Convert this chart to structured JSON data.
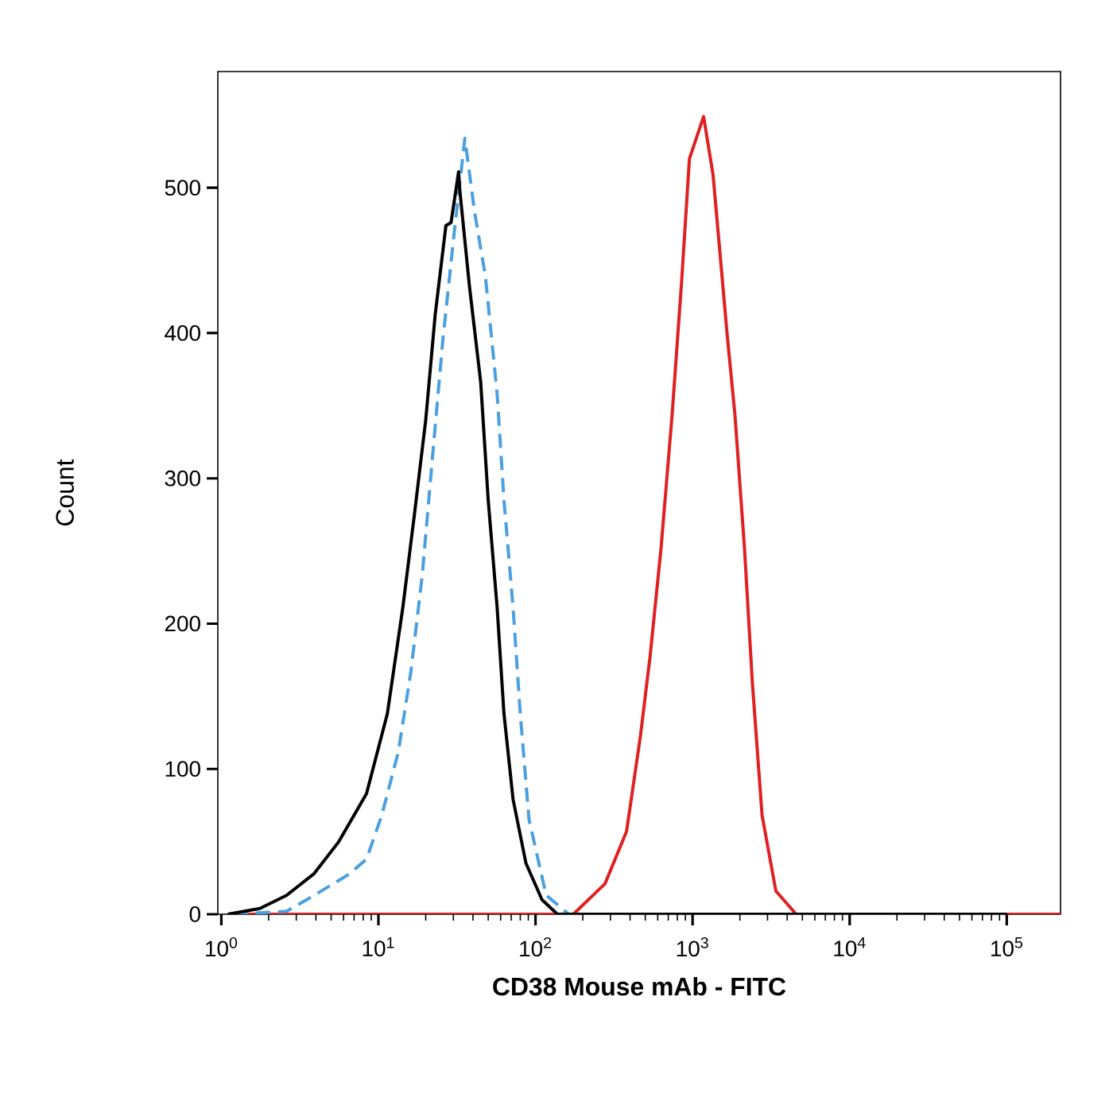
{
  "chart_data": {
    "type": "line",
    "xlabel": "CD38 Mouse mAb - FITC",
    "ylabel": "Count",
    "log": "x",
    "xlim": [
      0.95,
      220000
    ],
    "ylim": [
      0,
      580
    ],
    "xticks": [
      {
        "value": 1,
        "label": "10$^{0}$"
      },
      {
        "value": 10,
        "label": "10$^{1}$"
      },
      {
        "value": 100,
        "label": "10$^{2}$"
      },
      {
        "value": 1000,
        "label": "10$^{3}$"
      },
      {
        "value": 10000,
        "label": "10$^{4}$"
      },
      {
        "value": 100000,
        "label": "10$^{5}$"
      }
    ],
    "yticks": [
      0,
      100,
      200,
      300,
      400,
      500
    ],
    "series": [
      {
        "color": "#e02020",
        "line_style": "solid",
        "x": [
          1.1,
          174,
          277,
          380,
          466,
          537,
          630,
          741,
          851,
          955,
          1175,
          1350,
          1660,
          1860,
          2140,
          2400,
          2770,
          3390,
          4570,
          100000,
          220000
        ],
        "values": [
          0,
          0,
          21,
          57,
          123,
          178,
          252,
          344,
          435,
          520,
          549,
          509,
          399,
          344,
          252,
          160,
          68,
          16,
          0,
          0,
          0
        ]
      },
      {
        "color": "#4a9fe0",
        "line_style": "dashed",
        "x": [
          1.2,
          2.6,
          3.9,
          6.6,
          8.4,
          10.5,
          13.4,
          16.1,
          19,
          22.4,
          25.7,
          30.3,
          35.5,
          41,
          48,
          57,
          63,
          72,
          80,
          91,
          117,
          163,
          2000
        ],
        "values": [
          0,
          2,
          13,
          28,
          38,
          68,
          112,
          167,
          233,
          322,
          395,
          468,
          534,
          483,
          439,
          358,
          285,
          211,
          138,
          65,
          13,
          0,
          0
        ]
      },
      {
        "color": "#000000",
        "line_style": "solid",
        "x": [
          1.1,
          1.76,
          2.6,
          3.9,
          5.6,
          8.4,
          11.4,
          14.3,
          16.9,
          20,
          23,
          26.9,
          29,
          32.4,
          33,
          38,
          44.8,
          50,
          57,
          63,
          72,
          87,
          110,
          138,
          100000
        ],
        "values": [
          0,
          4,
          13,
          28,
          50,
          83,
          138,
          211,
          274,
          340,
          413,
          474,
          476,
          511,
          498,
          432,
          366,
          285,
          211,
          138,
          79,
          35,
          10,
          0,
          0
        ]
      }
    ]
  }
}
